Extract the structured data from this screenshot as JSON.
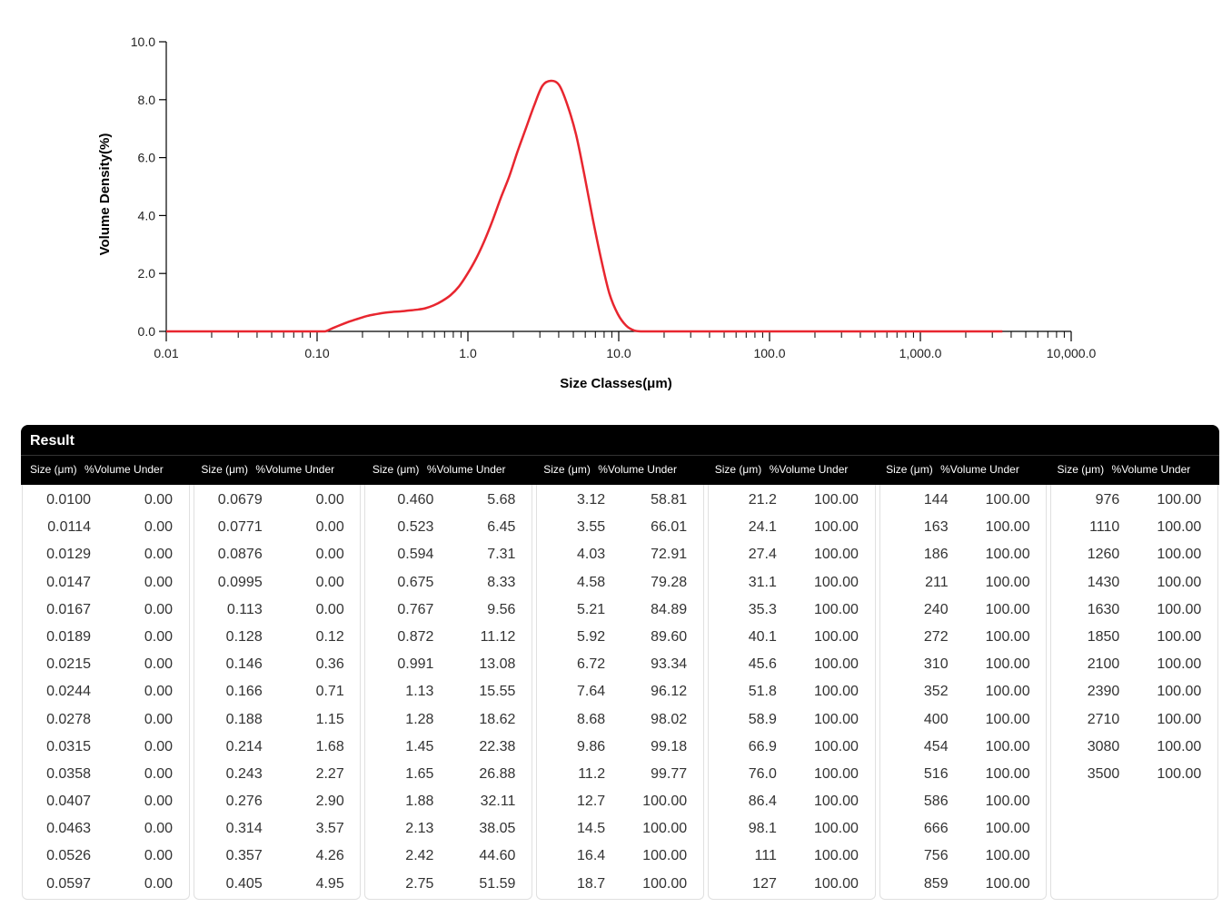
{
  "chart_data": {
    "type": "line",
    "xscale": "log",
    "xlim": [
      0.01,
      10000
    ],
    "ylim": [
      0,
      10
    ],
    "xlabel": "Size Classes(μm)",
    "ylabel": "Volume Density(%)",
    "x_tick_labels": [
      "0.01",
      "0.10",
      "1.0",
      "10.0",
      "100.0",
      "1,000.0",
      "10,000.0"
    ],
    "x_tick_values": [
      0.01,
      0.1,
      1,
      10,
      100,
      1000,
      10000
    ],
    "y_tick_labels": [
      "0.0",
      "2.0",
      "4.0",
      "6.0",
      "8.0",
      "10.0"
    ],
    "y_tick_values": [
      0,
      2,
      4,
      6,
      8,
      10
    ],
    "series": [
      {
        "color": "#e8262f",
        "x": [
          0.01,
          0.0597,
          0.0995,
          0.113,
          0.128,
          0.146,
          0.166,
          0.188,
          0.214,
          0.243,
          0.276,
          0.314,
          0.357,
          0.405,
          0.46,
          0.523,
          0.594,
          0.675,
          0.767,
          0.872,
          0.991,
          1.13,
          1.28,
          1.45,
          1.65,
          1.88,
          2.13,
          2.42,
          2.75,
          3.12,
          3.55,
          4.03,
          4.58,
          5.21,
          5.92,
          6.72,
          7.64,
          8.68,
          9.86,
          11.2,
          12.7,
          14.5,
          20,
          100,
          1000,
          3500
        ],
        "y": [
          0,
          0,
          0,
          0,
          0.12,
          0.24,
          0.35,
          0.44,
          0.53,
          0.59,
          0.64,
          0.67,
          0.69,
          0.72,
          0.75,
          0.8,
          0.9,
          1.05,
          1.25,
          1.55,
          1.98,
          2.5,
          3.1,
          3.8,
          4.6,
          5.35,
          6.2,
          7.0,
          7.8,
          8.48,
          8.65,
          8.5,
          7.8,
          6.8,
          5.4,
          3.9,
          2.5,
          1.3,
          0.6,
          0.2,
          0.03,
          0,
          0,
          0,
          0,
          0
        ]
      }
    ]
  },
  "result": {
    "title": "Result",
    "size_header": "Size (μm)",
    "vol_header": "%Volume Under",
    "columns": [
      {
        "sizes": [
          "0.0100",
          "0.0114",
          "0.0129",
          "0.0147",
          "0.0167",
          "0.0189",
          "0.0215",
          "0.0244",
          "0.0278",
          "0.0315",
          "0.0358",
          "0.0407",
          "0.0463",
          "0.0526",
          "0.0597"
        ],
        "vols": [
          "0.00",
          "0.00",
          "0.00",
          "0.00",
          "0.00",
          "0.00",
          "0.00",
          "0.00",
          "0.00",
          "0.00",
          "0.00",
          "0.00",
          "0.00",
          "0.00",
          "0.00"
        ]
      },
      {
        "sizes": [
          "0.0679",
          "0.0771",
          "0.0876",
          "0.0995",
          "0.113",
          "0.128",
          "0.146",
          "0.166",
          "0.188",
          "0.214",
          "0.243",
          "0.276",
          "0.314",
          "0.357",
          "0.405"
        ],
        "vols": [
          "0.00",
          "0.00",
          "0.00",
          "0.00",
          "0.00",
          "0.12",
          "0.36",
          "0.71",
          "1.15",
          "1.68",
          "2.27",
          "2.90",
          "3.57",
          "4.26",
          "4.95"
        ]
      },
      {
        "sizes": [
          "0.460",
          "0.523",
          "0.594",
          "0.675",
          "0.767",
          "0.872",
          "0.991",
          "1.13",
          "1.28",
          "1.45",
          "1.65",
          "1.88",
          "2.13",
          "2.42",
          "2.75"
        ],
        "vols": [
          "5.68",
          "6.45",
          "7.31",
          "8.33",
          "9.56",
          "11.12",
          "13.08",
          "15.55",
          "18.62",
          "22.38",
          "26.88",
          "32.11",
          "38.05",
          "44.60",
          "51.59"
        ]
      },
      {
        "sizes": [
          "3.12",
          "3.55",
          "4.03",
          "4.58",
          "5.21",
          "5.92",
          "6.72",
          "7.64",
          "8.68",
          "9.86",
          "11.2",
          "12.7",
          "14.5",
          "16.4",
          "18.7"
        ],
        "vols": [
          "58.81",
          "66.01",
          "72.91",
          "79.28",
          "84.89",
          "89.60",
          "93.34",
          "96.12",
          "98.02",
          "99.18",
          "99.77",
          "100.00",
          "100.00",
          "100.00",
          "100.00"
        ]
      },
      {
        "sizes": [
          "21.2",
          "24.1",
          "27.4",
          "31.1",
          "35.3",
          "40.1",
          "45.6",
          "51.8",
          "58.9",
          "66.9",
          "76.0",
          "86.4",
          "98.1",
          "111",
          "127"
        ],
        "vols": [
          "100.00",
          "100.00",
          "100.00",
          "100.00",
          "100.00",
          "100.00",
          "100.00",
          "100.00",
          "100.00",
          "100.00",
          "100.00",
          "100.00",
          "100.00",
          "100.00",
          "100.00"
        ]
      },
      {
        "sizes": [
          "144",
          "163",
          "186",
          "211",
          "240",
          "272",
          "310",
          "352",
          "400",
          "454",
          "516",
          "586",
          "666",
          "756",
          "859"
        ],
        "vols": [
          "100.00",
          "100.00",
          "100.00",
          "100.00",
          "100.00",
          "100.00",
          "100.00",
          "100.00",
          "100.00",
          "100.00",
          "100.00",
          "100.00",
          "100.00",
          "100.00",
          "100.00"
        ]
      },
      {
        "sizes": [
          "976",
          "1110",
          "1260",
          "1430",
          "1630",
          "1850",
          "2100",
          "2390",
          "2710",
          "3080",
          "3500"
        ],
        "vols": [
          "100.00",
          "100.00",
          "100.00",
          "100.00",
          "100.00",
          "100.00",
          "100.00",
          "100.00",
          "100.00",
          "100.00",
          "100.00"
        ]
      }
    ]
  }
}
